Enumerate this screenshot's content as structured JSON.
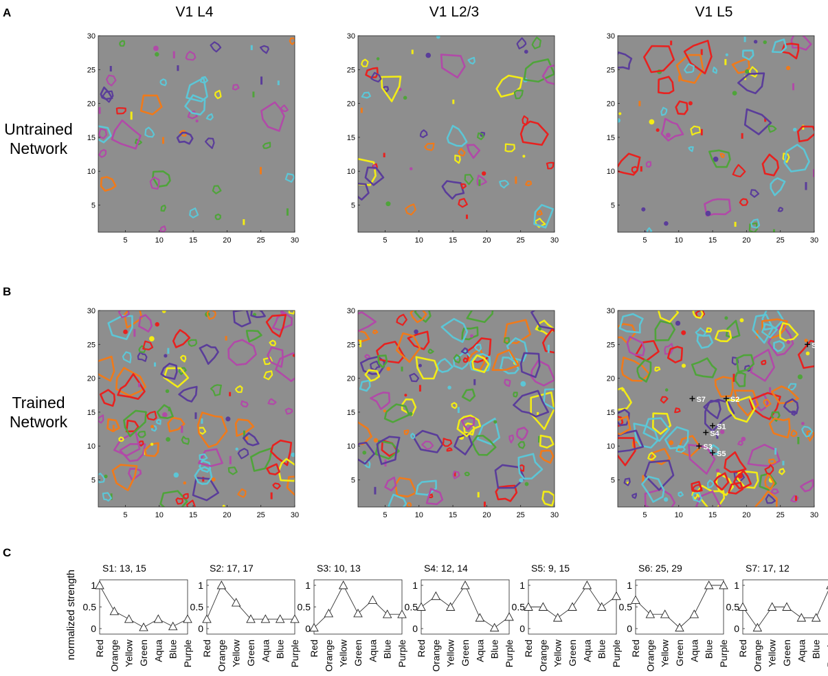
{
  "panel_labels": [
    "A",
    "B",
    "C"
  ],
  "column_titles": [
    "V1 L4",
    "V1 L2/3",
    "V1 L5"
  ],
  "row_labels": [
    [
      "Untrained",
      "Network"
    ],
    [
      "Trained",
      "Network"
    ]
  ],
  "map_ticks": {
    "x": [
      "5",
      "10",
      "15",
      "20",
      "25",
      "30"
    ],
    "y": [
      "5",
      "10",
      "15",
      "20",
      "25",
      "30"
    ]
  },
  "colors": {
    "background": "#8e8e8e",
    "Red": "#e8211f",
    "Orange": "#f07a1a",
    "Yellow": "#f3ec16",
    "Green": "#4fa43a",
    "Aqua": "#5cc6d6",
    "Blue": "#5a3d9a",
    "Purple": "#b14aa8"
  },
  "site_markers": [
    {
      "label": "S1",
      "row": 13,
      "col": 15
    },
    {
      "label": "S2",
      "row": 17,
      "col": 17
    },
    {
      "label": "S3",
      "row": 10,
      "col": 13
    },
    {
      "label": "S4",
      "row": 12,
      "col": 14
    },
    {
      "label": "S5",
      "row": 9,
      "col": 15
    },
    {
      "label": "S6",
      "row": 25,
      "col": 29
    },
    {
      "label": "S7",
      "row": 17,
      "col": 12
    }
  ],
  "chart_data": {
    "type": "line",
    "ylabel": "normalized strength",
    "categories": [
      "Red",
      "Orange",
      "Yellow",
      "Green",
      "Aqua",
      "Blue",
      "Purple"
    ],
    "y_ticks": [
      "0",
      "0.5",
      "1"
    ],
    "ylim": [
      0,
      1
    ],
    "series": [
      {
        "name": "S1: 13, 15",
        "values": [
          1.0,
          0.4,
          0.22,
          0.03,
          0.22,
          0.05,
          0.22
        ]
      },
      {
        "name": "S2: 17, 17",
        "values": [
          0.22,
          1.0,
          0.6,
          0.22,
          0.22,
          0.22,
          0.22
        ]
      },
      {
        "name": "S3: 10, 13",
        "values": [
          0.02,
          0.35,
          1.0,
          0.35,
          0.66,
          0.33,
          0.33
        ]
      },
      {
        "name": "S4: 12, 14",
        "values": [
          0.5,
          0.75,
          0.5,
          1.0,
          0.25,
          0.02,
          0.27
        ]
      },
      {
        "name": "S5: 9, 15",
        "values": [
          0.5,
          0.5,
          0.25,
          0.5,
          1.0,
          0.5,
          0.75
        ]
      },
      {
        "name": "S6: 25, 29",
        "values": [
          0.66,
          0.33,
          0.33,
          0.02,
          0.33,
          1.0,
          1.0
        ]
      },
      {
        "name": "S7: 17, 12",
        "values": [
          0.5,
          0.02,
          0.5,
          0.5,
          0.25,
          0.25,
          1.0
        ]
      }
    ]
  }
}
